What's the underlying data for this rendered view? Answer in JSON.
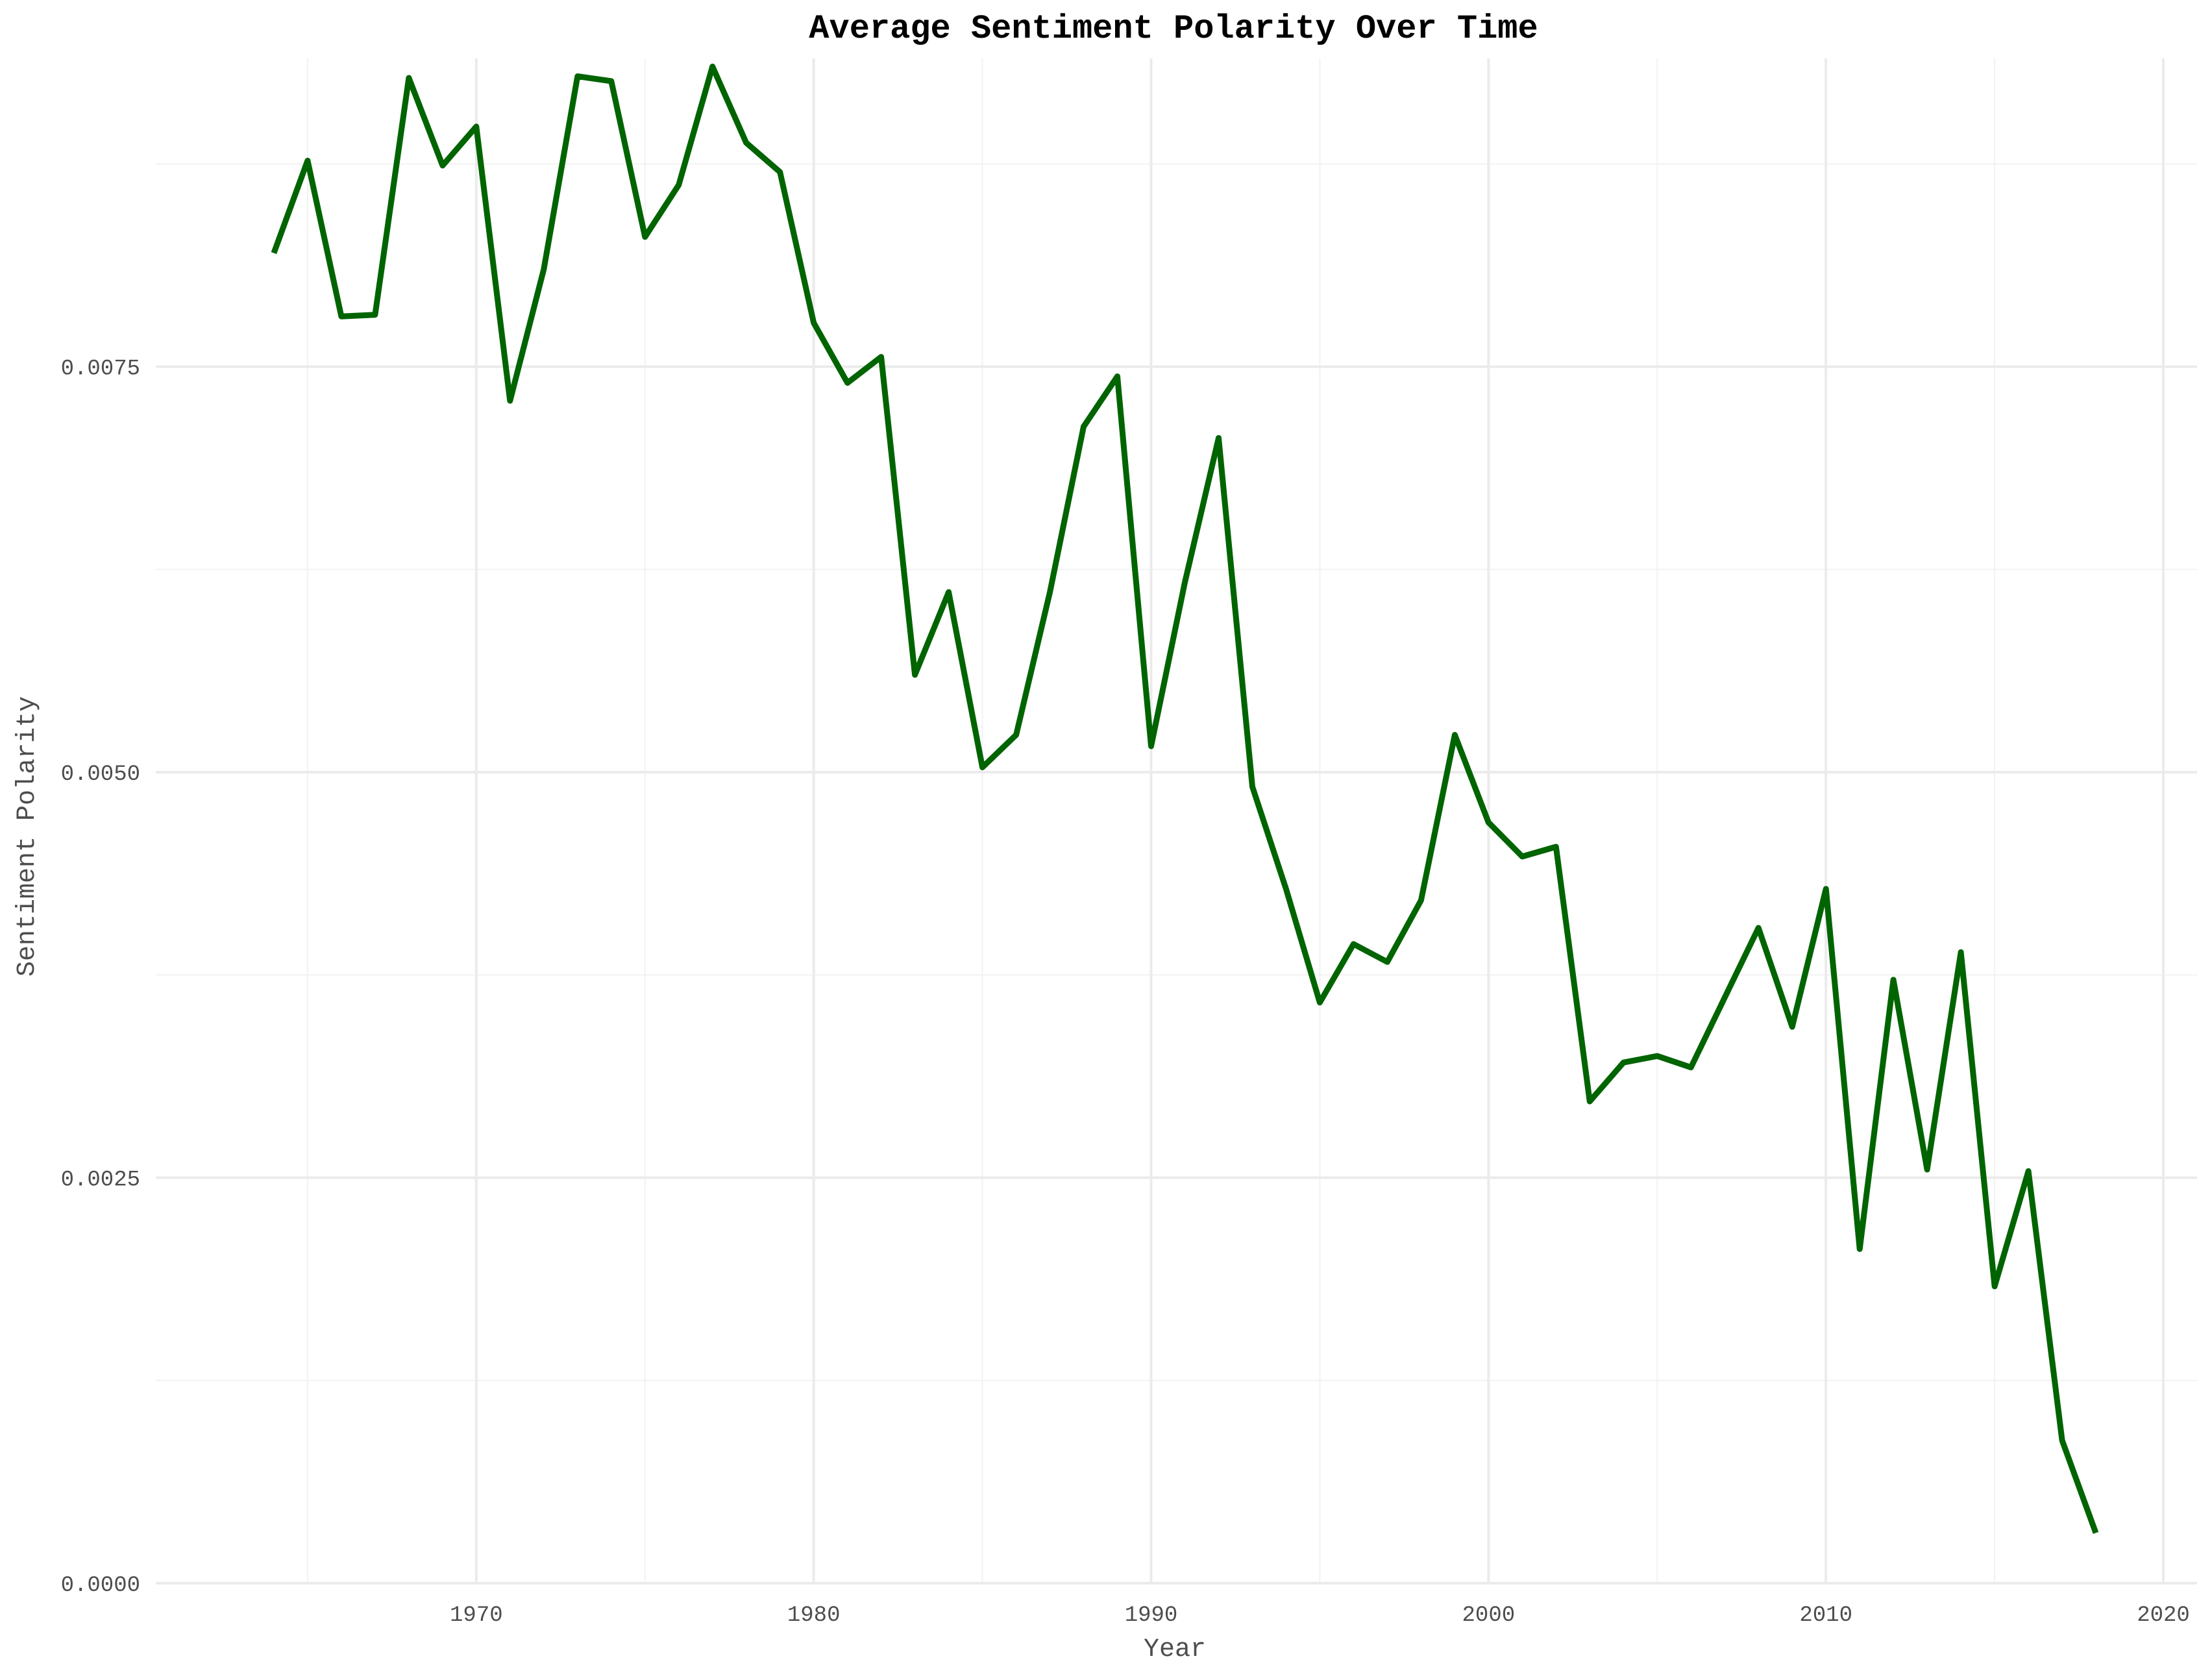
{
  "chart_data": {
    "type": "line",
    "title": "Average Sentiment Polarity Over Time",
    "xlabel": "Year",
    "ylabel": "Sentiment Polarity",
    "xlim": [
      1960.5,
      2021
    ],
    "ylim": [
      0,
      0.0094
    ],
    "x_ticks": [
      1970,
      1980,
      1990,
      2000,
      2010,
      2020
    ],
    "y_ticks": [
      0.0,
      0.0025,
      0.005,
      0.0075
    ],
    "x_tick_labels": [
      "1970",
      "1980",
      "1990",
      "2000",
      "2010",
      "2020"
    ],
    "y_tick_labels": [
      "0.0000",
      "0.0025",
      "0.0050",
      "0.0075"
    ],
    "x_minor_ticks": [
      1965,
      1975,
      1985,
      1995,
      2005,
      2015
    ],
    "y_minor_ticks": [
      0.00125,
      0.00375,
      0.00625,
      0.00875
    ],
    "grid": true,
    "legend": "none",
    "line_color": "#006400",
    "series": [
      {
        "x": [
          1964,
          1965,
          1966,
          1967,
          1968,
          1969,
          1970,
          1971,
          1972,
          1973,
          1974,
          1975,
          1976,
          1977,
          1978,
          1979,
          1980,
          1981,
          1982,
          1983,
          1984,
          1985,
          1986,
          1987,
          1988,
          1989,
          1990,
          1991,
          1992,
          1993,
          1994,
          1995,
          1996,
          1997,
          1998,
          1999,
          2000,
          2001,
          2002,
          2003,
          2004,
          2005,
          2006,
          2007,
          2008,
          2009,
          2010,
          2011,
          2012,
          2013,
          2014,
          2015,
          2016,
          2017,
          2018
        ],
        "values": [
          0.0082,
          0.00877,
          0.00781,
          0.00782,
          0.00928,
          0.00874,
          0.00898,
          0.00729,
          0.0081,
          0.00929,
          0.00926,
          0.0083,
          0.00862,
          0.00935,
          0.00888,
          0.0087,
          0.00777,
          0.0074,
          0.00756,
          0.0056,
          0.00611,
          0.00503,
          0.00523,
          0.00611,
          0.00713,
          0.00744,
          0.00516,
          0.00617,
          0.00706,
          0.00491,
          0.00428,
          0.00358,
          0.00394,
          0.00383,
          0.00421,
          0.00523,
          0.00469,
          0.00448,
          0.00454,
          0.00297,
          0.00321,
          0.00325,
          0.00318,
          0.00361,
          0.00404,
          0.00343,
          0.00428,
          0.00206,
          0.00372,
          0.00255,
          0.00389,
          0.00183,
          0.00254,
          0.00088,
          0.00031
        ]
      }
    ]
  }
}
